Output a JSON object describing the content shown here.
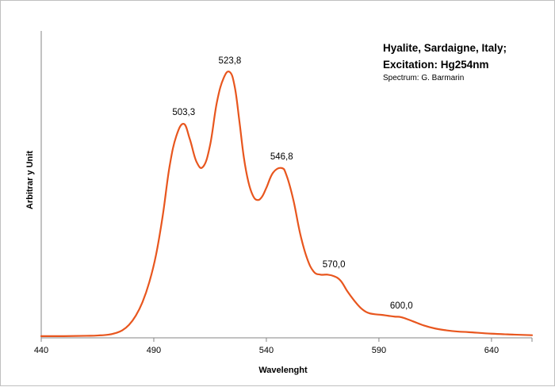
{
  "chart_data": {
    "type": "line",
    "title_lines": [
      "Hyalite, Sardaigne, Italy;",
      "Excitation:  Hg254nm"
    ],
    "subtitle": "Spectrum: G. Barmarin",
    "xlabel": "Wavelenght",
    "ylabel": "Arbitrar y Unit",
    "xlim": [
      440,
      658
    ],
    "ylim": [
      0,
      100
    ],
    "x_ticks": [
      440,
      490,
      540,
      590,
      640
    ],
    "x_tick_labels": [
      "440",
      "490",
      "540",
      "590",
      "640"
    ],
    "grid": false,
    "legend": "none",
    "color": "#E8561E",
    "series": [
      {
        "x": [
          440,
          450,
          460,
          465,
          470,
          473,
          476,
          479,
          482,
          485,
          488,
          491,
          494,
          497,
          500,
          503.3,
          506,
          509,
          512,
          515,
          518,
          521,
          523.8,
          526,
          528,
          530,
          532,
          534,
          536,
          538,
          540,
          543,
          546.8,
          549,
          552,
          555,
          558,
          561,
          564,
          567,
          570,
          573,
          576,
          579,
          582,
          585,
          588,
          591,
          594,
          597,
          600,
          605,
          610,
          615,
          620,
          625,
          630,
          640,
          650,
          658
        ],
        "y": [
          0.3,
          0.3,
          0.4,
          0.5,
          0.8,
          1.3,
          2.2,
          4.0,
          7.0,
          11.5,
          18.0,
          27.0,
          40.0,
          56.0,
          66.0,
          70.0,
          65.0,
          57.5,
          56.0,
          63.0,
          77.0,
          85.0,
          87.0,
          82.0,
          71.0,
          59.0,
          51.0,
          46.5,
          45.0,
          46.0,
          49.0,
          54.0,
          55.5,
          53.0,
          45.0,
          34.0,
          26.0,
          21.5,
          20.5,
          20.5,
          20.0,
          18.5,
          15.0,
          12.0,
          9.5,
          8.0,
          7.5,
          7.3,
          7.0,
          6.7,
          6.5,
          5.2,
          3.8,
          2.8,
          2.2,
          1.8,
          1.6,
          1.1,
          0.8,
          0.6
        ]
      }
    ],
    "annotations": [
      {
        "x": 503.3,
        "text": "503,3"
      },
      {
        "x": 523.8,
        "text": "523,8"
      },
      {
        "x": 546.8,
        "text": "546,8"
      },
      {
        "x": 570.0,
        "text": "570,0"
      },
      {
        "x": 600.0,
        "text": "600,0"
      }
    ]
  }
}
